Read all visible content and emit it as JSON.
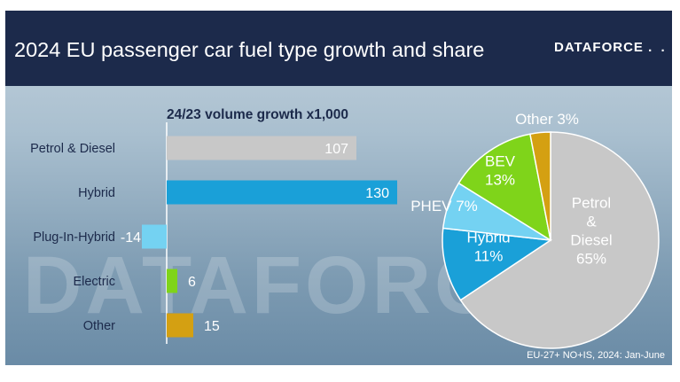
{
  "title": "2024 EU passenger car fuel type growth and share",
  "logo": {
    "text": "DATAFORCE",
    "dots": ". ."
  },
  "watermark_text": "DATAFORCE",
  "source_note": "EU-27+ NO+IS, 2024: Jan-June",
  "colors": {
    "header_bg": "#1c2a4b",
    "petrol_diesel": "#c8c8c8",
    "hybrid": "#1aa0d8",
    "phev": "#74d2f2",
    "bev": "#7fd41a",
    "other": "#d4a012"
  },
  "chart_data": [
    {
      "type": "bar",
      "orientation": "horizontal",
      "title": "24/23 volume growth x1,000",
      "categories": [
        "Petrol & Diesel",
        "Hybrid",
        "Plug-In-Hybrid",
        "Electric",
        "Other"
      ],
      "values": [
        107,
        130,
        -14,
        6,
        15
      ],
      "value_labels": [
        "107",
        "130",
        "-14",
        "6",
        "15"
      ],
      "colors": [
        "#c8c8c8",
        "#1aa0d8",
        "#74d2f2",
        "#7fd41a",
        "#d4a012"
      ],
      "xlim": [
        -20,
        150
      ]
    },
    {
      "type": "pie",
      "slices": [
        {
          "name": "Petrol & Diesel",
          "label_lines": [
            "Petrol",
            "&",
            "Diesel",
            "65%"
          ],
          "value": 65,
          "color": "#c8c8c8",
          "label_color": "#ffffff"
        },
        {
          "name": "Hybrid",
          "label_lines": [
            "Hybrid",
            "11%"
          ],
          "value": 11,
          "color": "#1aa0d8",
          "label_color": "#ffffff"
        },
        {
          "name": "PHEV",
          "label_lines": [
            "PHEV 7%"
          ],
          "value": 7,
          "color": "#74d2f2",
          "label_color": "#ffffff"
        },
        {
          "name": "BEV",
          "label_lines": [
            "BEV",
            "13%"
          ],
          "value": 13,
          "color": "#7fd41a",
          "label_color": "#ffffff"
        },
        {
          "name": "Other",
          "label_lines": [
            "Other 3%"
          ],
          "value": 3,
          "color": "#d4a012",
          "label_color": "#ffffff"
        }
      ]
    }
  ]
}
